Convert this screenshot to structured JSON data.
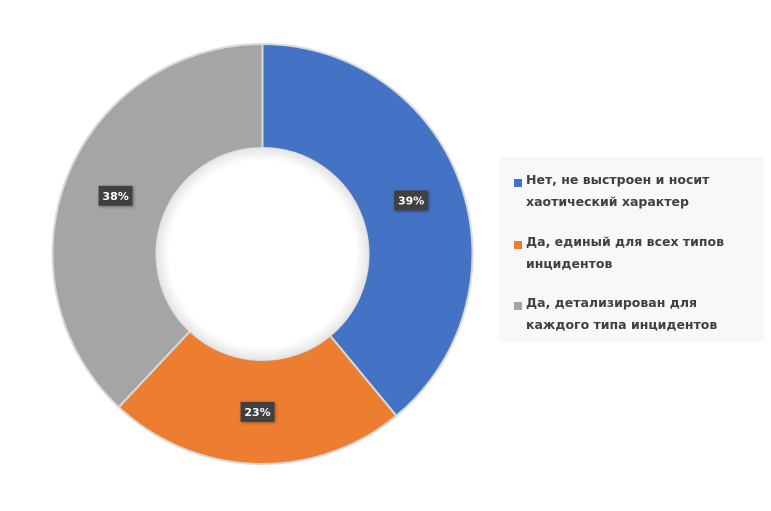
{
  "chart_data": {
    "type": "doughnut",
    "categories": [
      "Нет, не выстроен и носит хаотический характер",
      "Да, единый для всех типов инцидентов",
      "Да, детализирован для каждого типа инцидентов"
    ],
    "values": [
      39,
      23,
      38
    ],
    "data_labels": [
      "39%",
      "23%",
      "38%"
    ],
    "colors": [
      "#4472c4",
      "#ed7d31",
      "#a5a5a5"
    ],
    "legend_position": "right",
    "start_angle": "top, clockwise"
  }
}
